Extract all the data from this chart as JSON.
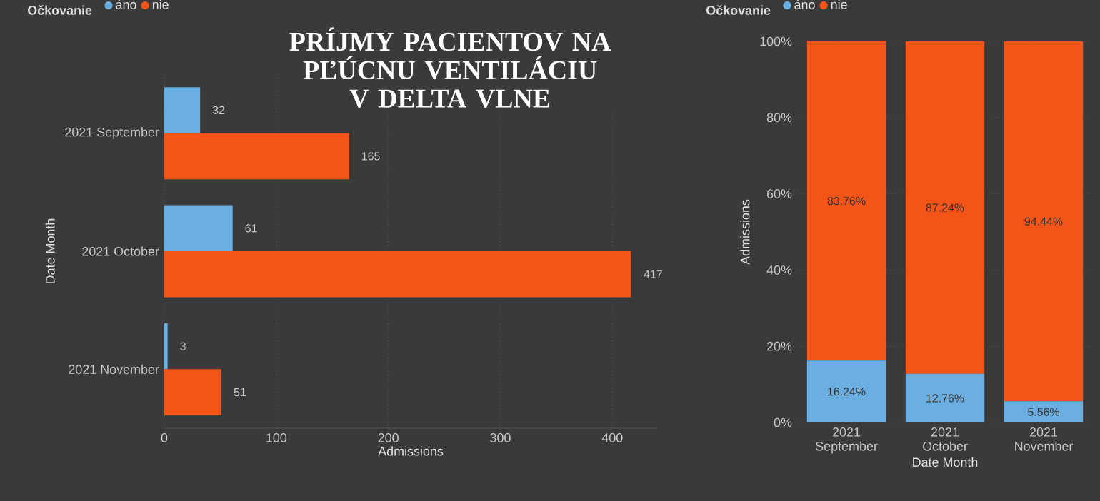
{
  "chart_data": [
    {
      "type": "bar",
      "orientation": "horizontal",
      "title": "PRÍJMY PACIENTOV NA PĽÚCNU VENTILÁCIU V DELTA VLNE",
      "legend_title": "Očkovanie",
      "xlabel": "Admissions",
      "ylabel": "Date Month",
      "categories": [
        "2021 September",
        "2021 October",
        "2021 November"
      ],
      "series": [
        {
          "name": "áno",
          "color": "#6aaee2",
          "values": [
            32,
            61,
            3
          ]
        },
        {
          "name": "nie",
          "color": "#f25517",
          "values": [
            165,
            417,
            51
          ]
        }
      ],
      "xlim": [
        0,
        440
      ],
      "xticks": [
        0,
        100,
        200,
        300,
        400
      ],
      "grid": "x",
      "legend": "top left",
      "data_labels": true
    },
    {
      "type": "bar",
      "stacked": true,
      "legend_title": "Očkovanie",
      "xlabel": "Date Month",
      "ylabel": "Admissions",
      "categories": [
        "2021 September",
        "2021 October",
        "2021 November"
      ],
      "series": [
        {
          "name": "áno",
          "color": "#6aaee2",
          "values": [
            16.24,
            12.76,
            5.56
          ],
          "value_labels": [
            "16.24%",
            "12.76%",
            "5.56%"
          ]
        },
        {
          "name": "nie",
          "color": "#f25517",
          "values": [
            83.76,
            87.24,
            94.44
          ],
          "value_labels": [
            "83.76%",
            "87.24%",
            "94.44%"
          ]
        }
      ],
      "ylim": [
        0,
        100
      ],
      "yticks": [
        {
          "value": 0,
          "label": "0%"
        },
        {
          "value": 20,
          "label": "20%"
        },
        {
          "value": 40,
          "label": "40%"
        },
        {
          "value": 60,
          "label": "60%"
        },
        {
          "value": 80,
          "label": "80%"
        },
        {
          "value": 100,
          "label": "100%"
        }
      ],
      "grid": "y",
      "legend": "top left"
    }
  ]
}
